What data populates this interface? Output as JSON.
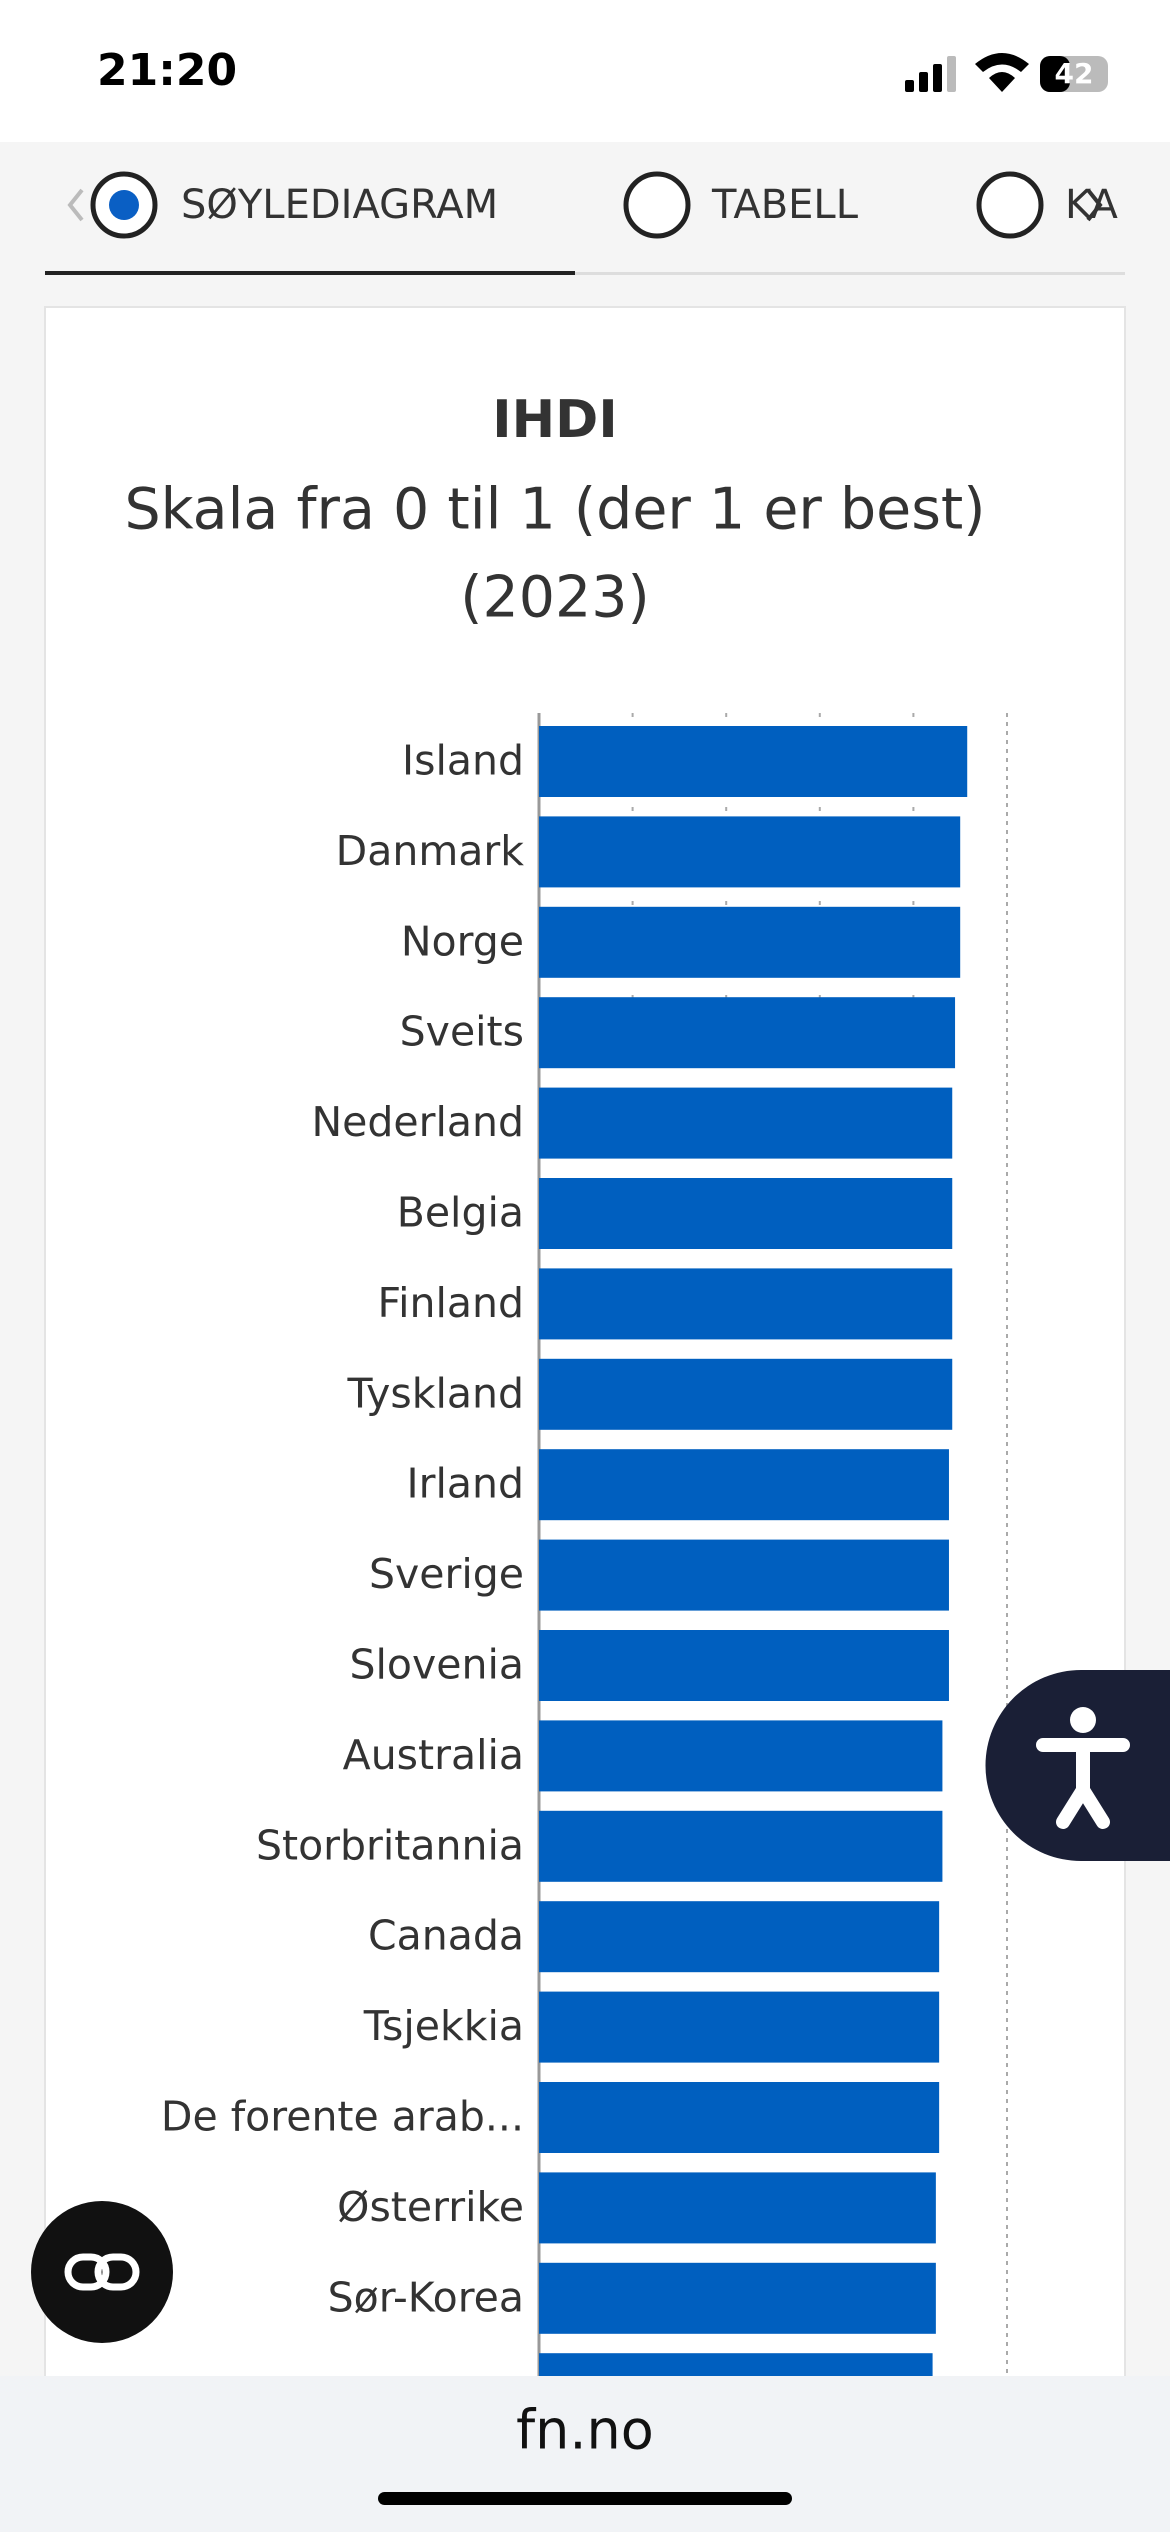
{
  "status_bar": {
    "time": "21:20",
    "battery": "42"
  },
  "tabs": [
    "SØYLEDIAGRAM",
    "TABELL",
    "KA"
  ],
  "chart_data": {
    "type": "bar",
    "orientation": "horizontal",
    "title": "IHDI",
    "subtitle": [
      "Skala fra 0 til 1 (der 1 er best)",
      "(2023)"
    ],
    "categories": [
      "Island",
      "Danmark",
      "Norge",
      "Sveits",
      "Nederland",
      "Belgia",
      "Finland",
      "Tyskland",
      "Irland",
      "Sverige",
      "Slovenia",
      "Australia",
      "Storbritannia",
      "Canada",
      "Tsjekkia",
      "De forente arab...",
      "Østerrike",
      "Sør-Korea",
      null
    ],
    "values": [
      0.915,
      0.9,
      0.9,
      0.889,
      0.883,
      0.883,
      0.883,
      0.883,
      0.876,
      0.876,
      0.876,
      0.862,
      0.862,
      0.855,
      0.855,
      0.855,
      0.848,
      0.848,
      0.841
    ],
    "color": "#005fbf",
    "xlim": [
      0,
      1
    ],
    "xticks": [
      0,
      0.2,
      0.4,
      0.6,
      0.8,
      1
    ],
    "grid": true
  },
  "footer": {
    "url": "fn.no"
  }
}
